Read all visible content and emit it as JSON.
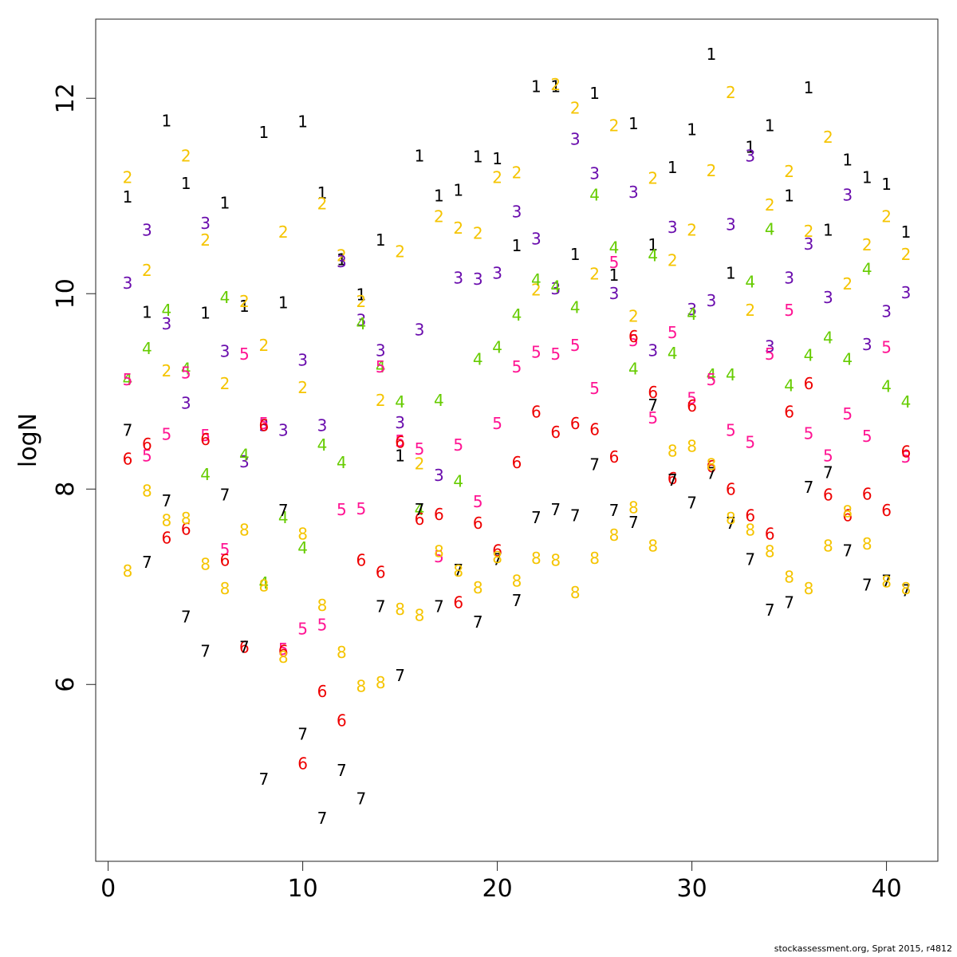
{
  "chart_data": {
    "type": "scatter",
    "title": "",
    "xlabel": "",
    "ylabel": "logN",
    "xlim": [
      -0.64,
      42.64
    ],
    "ylim": [
      4.19,
      12.81
    ],
    "x_ticks": [
      0,
      10,
      20,
      30,
      40
    ],
    "y_ticks": [
      6,
      8,
      10,
      12
    ],
    "grid": false,
    "legend": "none",
    "marker": "age digit",
    "x": [
      1,
      2,
      3,
      4,
      5,
      6,
      7,
      8,
      9,
      10,
      11,
      12,
      13,
      14,
      15,
      16,
      17,
      18,
      19,
      20,
      21,
      22,
      23,
      24,
      25,
      26,
      27,
      28,
      29,
      30,
      31,
      32,
      33,
      34,
      35,
      36,
      37,
      38,
      39,
      40,
      41
    ],
    "series": [
      {
        "label": "1",
        "color": "#000000",
        "values": [
          10.99,
          9.81,
          11.77,
          11.13,
          9.8,
          10.93,
          9.87,
          11.65,
          9.91,
          11.76,
          11.03,
          10.35,
          9.99,
          10.55,
          8.34,
          11.41,
          11.0,
          11.06,
          11.4,
          11.38,
          10.49,
          12.12,
          12.12,
          10.4,
          12.05,
          10.19,
          11.74,
          10.5,
          11.29,
          11.68,
          12.45,
          10.21,
          11.5,
          11.72,
          11.0,
          12.11,
          10.65,
          11.37,
          11.19,
          11.12,
          10.63
        ]
      },
      {
        "label": "2",
        "color": "#F5C400",
        "values": [
          11.19,
          10.24,
          9.21,
          11.41,
          10.55,
          9.08,
          9.92,
          9.47,
          10.63,
          9.04,
          10.92,
          10.39,
          9.92,
          8.91,
          10.43,
          8.26,
          10.79,
          10.67,
          10.62,
          11.19,
          11.24,
          10.04,
          12.14,
          11.9,
          10.2,
          11.72,
          9.77,
          11.18,
          10.34,
          10.65,
          11.26,
          12.06,
          9.83,
          10.91,
          11.25,
          10.64,
          11.6,
          10.1,
          10.5,
          10.79,
          10.4
        ]
      },
      {
        "label": "3",
        "color": "#6A0DAD",
        "values": [
          10.11,
          10.65,
          9.69,
          8.88,
          10.72,
          9.41,
          8.28,
          8.65,
          8.6,
          9.32,
          8.65,
          10.33,
          9.73,
          9.42,
          8.68,
          9.63,
          8.14,
          10.16,
          10.15,
          10.21,
          10.84,
          10.56,
          10.05,
          11.58,
          11.23,
          10.0,
          11.04,
          9.42,
          10.68,
          9.84,
          9.93,
          10.71,
          11.41,
          9.46,
          10.16,
          10.51,
          9.96,
          11.01,
          9.48,
          9.82,
          10.01
        ]
      },
      {
        "label": "4",
        "color": "#66CC00",
        "values": [
          9.12,
          9.44,
          9.83,
          9.23,
          8.15,
          9.96,
          8.35,
          7.04,
          7.71,
          7.4,
          8.45,
          8.27,
          9.69,
          9.25,
          8.89,
          7.79,
          8.91,
          8.08,
          9.33,
          9.45,
          9.78,
          10.14,
          10.07,
          9.86,
          11.01,
          10.47,
          9.23,
          10.39,
          9.39,
          9.79,
          9.17,
          9.17,
          10.12,
          10.66,
          9.06,
          9.37,
          9.55,
          9.33,
          10.25,
          9.05,
          8.89
        ]
      },
      {
        "label": "5",
        "color": "#FF1493",
        "values": [
          9.12,
          8.34,
          8.56,
          9.19,
          8.55,
          7.38,
          9.38,
          8.67,
          6.36,
          6.57,
          6.61,
          7.79,
          7.8,
          9.25,
          8.49,
          8.41,
          7.31,
          8.45,
          7.87,
          8.67,
          9.25,
          9.4,
          9.38,
          9.47,
          9.03,
          10.32,
          9.52,
          8.73,
          9.6,
          8.93,
          9.12,
          8.6,
          8.48,
          9.38,
          9.83,
          8.57,
          8.34,
          8.77,
          8.54,
          9.45,
          8.33
        ]
      },
      {
        "label": "6",
        "color": "#EE0000",
        "values": [
          8.31,
          8.46,
          7.5,
          7.59,
          8.51,
          7.27,
          6.38,
          8.65,
          6.34,
          5.19,
          5.93,
          5.63,
          7.27,
          7.15,
          8.48,
          7.69,
          7.74,
          6.84,
          7.65,
          7.37,
          8.27,
          8.79,
          8.58,
          8.67,
          8.61,
          8.33,
          9.56,
          8.99,
          8.11,
          8.85,
          8.23,
          8.0,
          7.73,
          7.54,
          8.79,
          9.08,
          7.94,
          7.73,
          7.95,
          7.78,
          8.38
        ]
      },
      {
        "label": "7",
        "color": "#000000",
        "values": [
          8.6,
          7.25,
          7.88,
          6.69,
          6.34,
          7.94,
          6.38,
          5.03,
          7.78,
          5.49,
          4.63,
          5.12,
          4.83,
          6.8,
          6.09,
          7.79,
          6.8,
          7.17,
          6.64,
          7.28,
          6.86,
          7.71,
          7.79,
          7.73,
          8.25,
          7.78,
          7.66,
          8.86,
          8.09,
          7.86,
          8.16,
          7.65,
          7.28,
          6.76,
          6.84,
          8.02,
          8.17,
          7.37,
          7.02,
          7.06,
          6.96
        ]
      },
      {
        "label": "8",
        "color": "#F5C400",
        "values": [
          7.16,
          7.98,
          7.68,
          7.7,
          7.23,
          6.98,
          7.58,
          7.01,
          6.28,
          7.54,
          6.81,
          6.33,
          5.98,
          6.02,
          6.77,
          6.71,
          7.36,
          7.16,
          6.99,
          7.3,
          7.06,
          7.29,
          7.27,
          6.94,
          7.29,
          7.53,
          7.81,
          7.42,
          8.39,
          8.44,
          8.25,
          7.7,
          7.58,
          7.36,
          7.1,
          6.98,
          7.42,
          7.77,
          7.44,
          7.05,
          6.98
        ]
      }
    ]
  },
  "footer": "stockassessment.org, Sprat  2015, r4812"
}
